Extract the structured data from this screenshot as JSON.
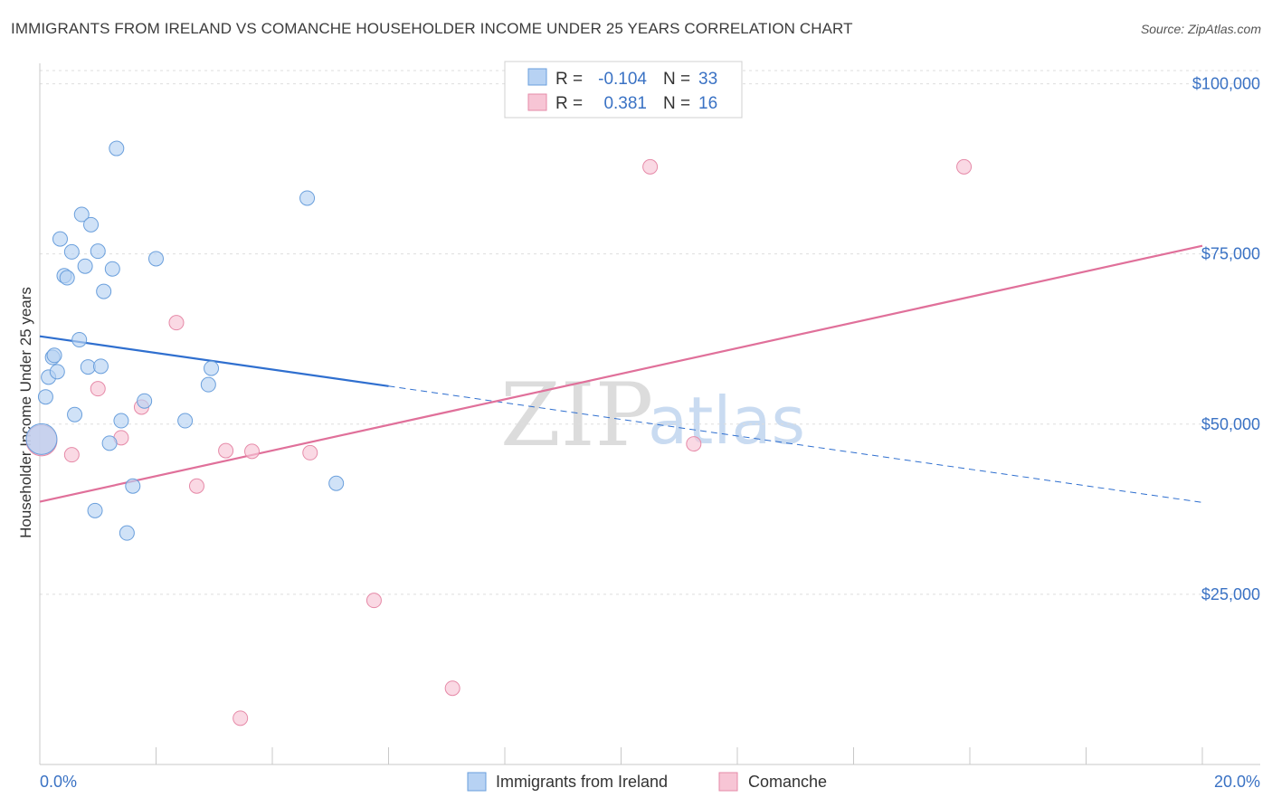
{
  "header": {
    "title": "IMMIGRANTS FROM IRELAND VS COMANCHE HOUSEHOLDER INCOME UNDER 25 YEARS CORRELATION CHART",
    "source": "Source: ZipAtlas.com"
  },
  "watermark": {
    "zip": "ZIP",
    "atlas": "atlas"
  },
  "legend": {
    "r_label": "R =",
    "n_label": "N =",
    "rows": [
      {
        "r": "-0.104",
        "n": "33"
      },
      {
        "r": "0.381",
        "n": "16"
      }
    ]
  },
  "colors": {
    "series1_fill": "#b7d2f3",
    "series1_stroke": "#6a9fdc",
    "series1_line": "#2f6fcf",
    "series2_fill": "#f7c5d5",
    "series2_stroke": "#e68aa8",
    "series2_line": "#e0709a"
  },
  "chart_data": {
    "type": "scatter",
    "title": "IMMIGRANTS FROM IRELAND VS COMANCHE HOUSEHOLDER INCOME UNDER 25 YEARS CORRELATION CHART",
    "xlabel": "",
    "ylabel": "Householder Income Under 25 years",
    "xlim": [
      0,
      20
    ],
    "ylim": [
      0,
      103000
    ],
    "x_tick_labels": [
      "0.0%",
      "20.0%"
    ],
    "y_ticks": [
      {
        "value": 25000,
        "label": "$25,000"
      },
      {
        "value": 50000,
        "label": "$50,000"
      },
      {
        "value": 75000,
        "label": "$75,000"
      },
      {
        "value": 100000,
        "label": "$100,000"
      }
    ],
    "series": [
      {
        "name": "Immigrants from Ireland",
        "R": -0.104,
        "N": 33,
        "points": [
          {
            "x": 0.03,
            "y": 47800,
            "big": true
          },
          {
            "x": 0.1,
            "y": 54000
          },
          {
            "x": 0.15,
            "y": 56900
          },
          {
            "x": 0.22,
            "y": 59800
          },
          {
            "x": 0.25,
            "y": 60100
          },
          {
            "x": 0.3,
            "y": 57700
          },
          {
            "x": 0.35,
            "y": 77200
          },
          {
            "x": 0.42,
            "y": 71800
          },
          {
            "x": 0.47,
            "y": 71500
          },
          {
            "x": 0.55,
            "y": 75300
          },
          {
            "x": 0.6,
            "y": 51400
          },
          {
            "x": 0.68,
            "y": 62400
          },
          {
            "x": 0.72,
            "y": 80800
          },
          {
            "x": 0.78,
            "y": 73200
          },
          {
            "x": 0.83,
            "y": 58400
          },
          {
            "x": 0.88,
            "y": 79300
          },
          {
            "x": 0.95,
            "y": 37300
          },
          {
            "x": 1.0,
            "y": 75400
          },
          {
            "x": 1.05,
            "y": 58500
          },
          {
            "x": 1.1,
            "y": 69500
          },
          {
            "x": 1.2,
            "y": 47200
          },
          {
            "x": 1.25,
            "y": 72800
          },
          {
            "x": 1.32,
            "y": 90500
          },
          {
            "x": 1.4,
            "y": 50500
          },
          {
            "x": 1.5,
            "y": 34000
          },
          {
            "x": 1.6,
            "y": 40900
          },
          {
            "x": 1.8,
            "y": 53400
          },
          {
            "x": 2.0,
            "y": 74300
          },
          {
            "x": 2.5,
            "y": 50500
          },
          {
            "x": 2.9,
            "y": 55800
          },
          {
            "x": 2.95,
            "y": 58200
          },
          {
            "x": 4.6,
            "y": 83200
          },
          {
            "x": 5.1,
            "y": 41300
          }
        ],
        "trend": {
          "x0": 0,
          "y0": 62900,
          "x_solid_end": 6.0,
          "x1": 20,
          "y1": 38500
        }
      },
      {
        "name": "Comanche",
        "R": 0.381,
        "N": 16,
        "points": [
          {
            "x": 0.03,
            "y": 47600,
            "big": true
          },
          {
            "x": 0.55,
            "y": 45500
          },
          {
            "x": 1.0,
            "y": 55200
          },
          {
            "x": 1.4,
            "y": 48000
          },
          {
            "x": 1.75,
            "y": 52500
          },
          {
            "x": 2.35,
            "y": 64900
          },
          {
            "x": 2.7,
            "y": 40900
          },
          {
            "x": 3.2,
            "y": 46100
          },
          {
            "x": 3.45,
            "y": 6800
          },
          {
            "x": 3.65,
            "y": 46000
          },
          {
            "x": 4.65,
            "y": 45800
          },
          {
            "x": 5.75,
            "y": 24100
          },
          {
            "x": 7.1,
            "y": 11200
          },
          {
            "x": 10.5,
            "y": 87800
          },
          {
            "x": 11.25,
            "y": 47100
          },
          {
            "x": 15.9,
            "y": 87800
          }
        ],
        "trend": {
          "x0": 0,
          "y0": 38600,
          "x1": 20,
          "y1": 76200
        }
      }
    ]
  }
}
